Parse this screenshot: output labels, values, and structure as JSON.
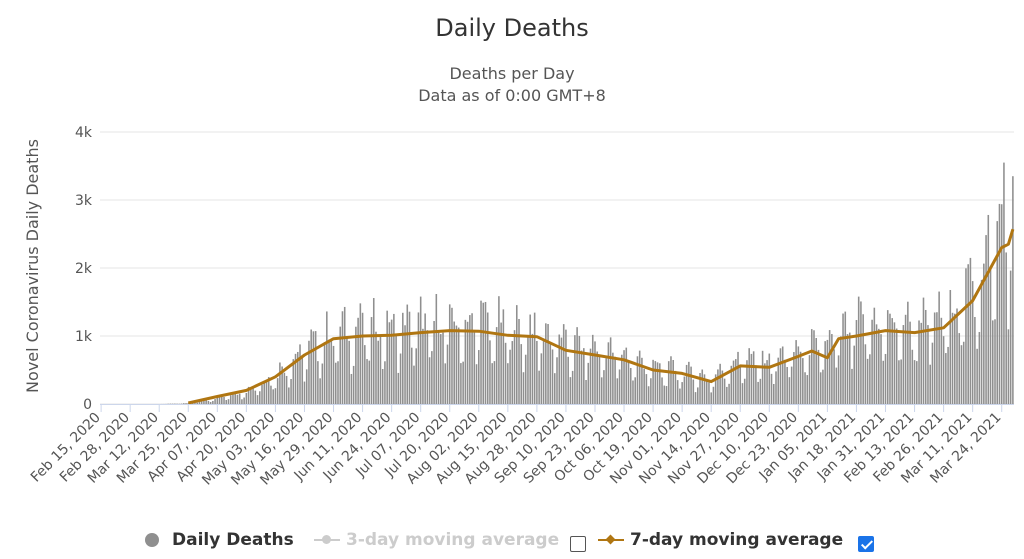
{
  "chart_data": {
    "type": "bar",
    "title": "Daily Deaths",
    "subtitle_lines": [
      "Deaths per Day",
      "Data as of 0:00 GMT+8"
    ],
    "ylabel": "Novel Coronavirus Daily Deaths",
    "xlabel": "",
    "ylim": [
      0,
      4000
    ],
    "y_ticks": [
      0,
      1000,
      2000,
      3000,
      4000
    ],
    "y_tick_labels": [
      "0",
      "1k",
      "2k",
      "3k",
      "4k"
    ],
    "x_start": "Feb 15, 2020",
    "x_end": "Mar 29, 2021",
    "x_tick_labels": [
      "Feb 15, 2020",
      "Feb 28, 2020",
      "Mar 12, 2020",
      "Mar 25, 2020",
      "Apr 07, 2020",
      "Apr 20, 2020",
      "May 03, 2020",
      "May 16, 2020",
      "May 29, 2020",
      "Jun 11, 2020",
      "Jun 24, 2020",
      "Jul 07, 2020",
      "Jul 20, 2020",
      "Aug 02, 2020",
      "Aug 15, 2020",
      "Aug 28, 2020",
      "Sep 10, 2020",
      "Sep 23, 2020",
      "Oct 06, 2020",
      "Oct 19, 2020",
      "Nov 01, 2020",
      "Nov 14, 2020",
      "Nov 27, 2020",
      "Dec 10, 2020",
      "Dec 23, 2020",
      "Jan 05, 2021",
      "Jan 18, 2021",
      "Jan 31, 2021",
      "Feb 13, 2021",
      "Feb 26, 2021",
      "Mar 11, 2021",
      "Mar 24, 2021"
    ],
    "grid": true,
    "legend_position": "bottom",
    "series": [
      {
        "name": "Daily Deaths",
        "type": "bar",
        "color": "#8f8f8f",
        "trend_date": [
          "Feb 15, 2020",
          "Mar 12, 2020",
          "Mar 25, 2020",
          "Apr 07, 2020",
          "Apr 20, 2020",
          "May 03, 2020",
          "May 16, 2020",
          "May 29, 2020",
          "Jun 11, 2020",
          "Jun 24, 2020",
          "Jul 07, 2020",
          "Jul 20, 2020",
          "Aug 02, 2020",
          "Aug 15, 2020",
          "Aug 28, 2020",
          "Sep 10, 2020",
          "Sep 23, 2020",
          "Oct 06, 2020",
          "Oct 19, 2020",
          "Nov 01, 2020",
          "Nov 14, 2020",
          "Nov 27, 2020",
          "Dec 10, 2020",
          "Dec 23, 2020",
          "Jan 05, 2021",
          "Jan 18, 2021",
          "Jan 31, 2021",
          "Feb 13, 2021",
          "Feb 26, 2021",
          "Mar 11, 2021",
          "Mar 24, 2021",
          "Mar 29, 2021"
        ],
        "trend_value": [
          0,
          0,
          10,
          80,
          170,
          380,
          700,
          950,
          1000,
          1020,
          1060,
          1080,
          1060,
          1010,
          980,
          800,
          740,
          650,
          480,
          440,
          340,
          600,
          560,
          700,
          780,
          1050,
          1080,
          1050,
          1150,
          1550,
          2250,
          2600
        ],
        "peaks": [
          [
            "Mar 25, 2021",
            3550
          ],
          [
            "Mar 29, 2021",
            3350
          ],
          [
            "Mar 18, 2021",
            2780
          ],
          [
            "Aug 03, 2020",
            1520
          ],
          [
            "Jun 10, 2020",
            1480
          ]
        ]
      },
      {
        "name": "3-day moving average",
        "type": "line",
        "color": "#cccccc",
        "visible": false
      },
      {
        "name": "7-day moving average",
        "type": "line",
        "color": "#b07612",
        "visible": true,
        "x": [
          "Mar 25, 2020",
          "Apr 07, 2020",
          "Apr 20, 2020",
          "May 03, 2020",
          "May 16, 2020",
          "May 29, 2020",
          "Jun 11, 2020",
          "Jun 24, 2020",
          "Jul 07, 2020",
          "Jul 20, 2020",
          "Aug 02, 2020",
          "Aug 15, 2020",
          "Aug 28, 2020",
          "Sep 10, 2020",
          "Sep 23, 2020",
          "Oct 06, 2020",
          "Oct 19, 2020",
          "Nov 01, 2020",
          "Nov 14, 2020",
          "Nov 27, 2020",
          "Dec 10, 2020",
          "Dec 23, 2020",
          "Dec 29, 2020",
          "Jan 05, 2021",
          "Jan 10, 2021",
          "Jan 18, 2021",
          "Jan 31, 2021",
          "Feb 13, 2021",
          "Feb 26, 2021",
          "Mar 11, 2021",
          "Mar 24, 2021",
          "Mar 27, 2021",
          "Mar 29, 2021"
        ],
        "values": [
          15,
          110,
          200,
          400,
          720,
          960,
          1000,
          1010,
          1050,
          1080,
          1070,
          1010,
          990,
          790,
          720,
          650,
          500,
          450,
          330,
          560,
          540,
          700,
          780,
          680,
          960,
          1000,
          1080,
          1050,
          1120,
          1520,
          2300,
          2350,
          2570
        ]
      }
    ]
  },
  "legend": {
    "daily_deaths": "Daily Deaths",
    "ma3": "3-day moving average",
    "ma7": "7-day moving average",
    "ma3_checked": false,
    "ma7_checked": true
  },
  "colors": {
    "bars": "#8f8f8f",
    "ma7": "#b07612",
    "ma3": "#cccccc",
    "grid": "#e6e6e6",
    "checkbox_on": "#1a73e8"
  }
}
